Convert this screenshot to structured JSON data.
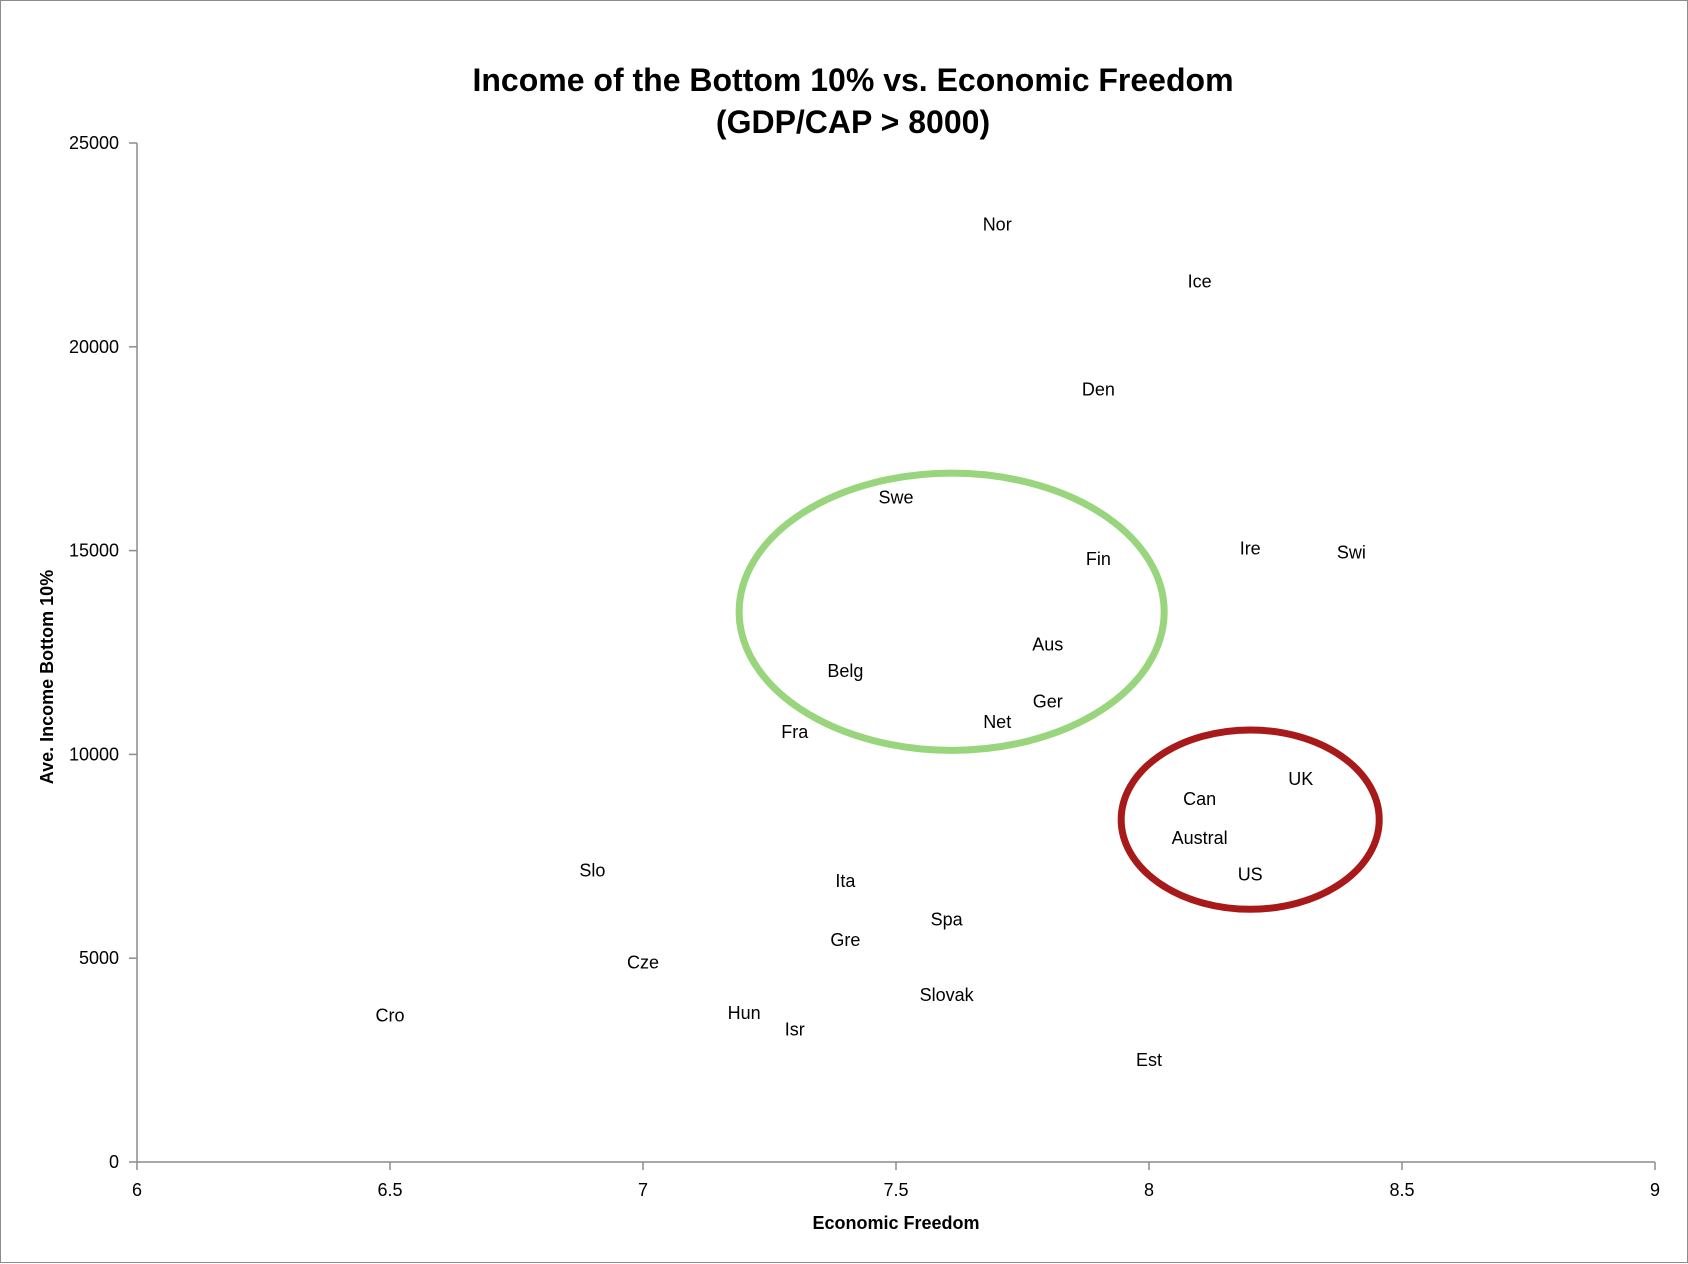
{
  "chart_data": {
    "type": "scatter",
    "title": "Income of the Bottom 10% vs. Economic Freedom",
    "subtitle": "(GDP/CAP > 8000)",
    "xlabel": "Economic Freedom",
    "ylabel": "Ave. Income Bottom 10%",
    "xlim": [
      6,
      9
    ],
    "ylim": [
      0,
      25000
    ],
    "xticks": [
      "6",
      "6.5",
      "7",
      "7.5",
      "8",
      "8.5",
      "9"
    ],
    "yticks": [
      "0",
      "5000",
      "10000",
      "15000",
      "20000",
      "25000"
    ],
    "marker": "text-label",
    "points": [
      {
        "label": "Nor",
        "x": 7.7,
        "y": 23000
      },
      {
        "label": "Ice",
        "x": 8.1,
        "y": 21600
      },
      {
        "label": "Den",
        "x": 7.9,
        "y": 18950
      },
      {
        "label": "Swe",
        "x": 7.5,
        "y": 16300
      },
      {
        "label": "Fin",
        "x": 7.9,
        "y": 14800
      },
      {
        "label": "Ire",
        "x": 8.2,
        "y": 15050
      },
      {
        "label": "Swi",
        "x": 8.4,
        "y": 14950
      },
      {
        "label": "Aus",
        "x": 7.8,
        "y": 12700
      },
      {
        "label": "Belg",
        "x": 7.4,
        "y": 12050
      },
      {
        "label": "Ger",
        "x": 7.8,
        "y": 11300
      },
      {
        "label": "Net",
        "x": 7.7,
        "y": 10800
      },
      {
        "label": "Fra",
        "x": 7.3,
        "y": 10550
      },
      {
        "label": "UK",
        "x": 8.3,
        "y": 9400
      },
      {
        "label": "Can",
        "x": 8.1,
        "y": 8900
      },
      {
        "label": "Austral",
        "x": 8.1,
        "y": 7950
      },
      {
        "label": "US",
        "x": 8.2,
        "y": 7050
      },
      {
        "label": "Slo",
        "x": 6.9,
        "y": 7150
      },
      {
        "label": "Ita",
        "x": 7.4,
        "y": 6900
      },
      {
        "label": "Spa",
        "x": 7.6,
        "y": 5950
      },
      {
        "label": "Gre",
        "x": 7.4,
        "y": 5450
      },
      {
        "label": "Cze",
        "x": 7.0,
        "y": 4900
      },
      {
        "label": "Slovak",
        "x": 7.6,
        "y": 4100
      },
      {
        "label": "Hun",
        "x": 7.2,
        "y": 3650
      },
      {
        "label": "Isr",
        "x": 7.3,
        "y": 3250
      },
      {
        "label": "Cro",
        "x": 6.5,
        "y": 3600
      },
      {
        "label": "Est",
        "x": 8.0,
        "y": 2500
      }
    ],
    "highlights": [
      {
        "shape": "ellipse",
        "color": "#99d57c",
        "cx": 7.61,
        "cy": 13500,
        "rx": 0.42,
        "ry": 3400
      },
      {
        "shape": "ellipse",
        "color": "#a81a1a",
        "cx": 8.2,
        "cy": 8400,
        "rx": 0.255,
        "ry": 2200
      }
    ],
    "grid": false,
    "legend": "none",
    "colors": {
      "axis": "#8c8c8c",
      "text": "#000000"
    }
  }
}
